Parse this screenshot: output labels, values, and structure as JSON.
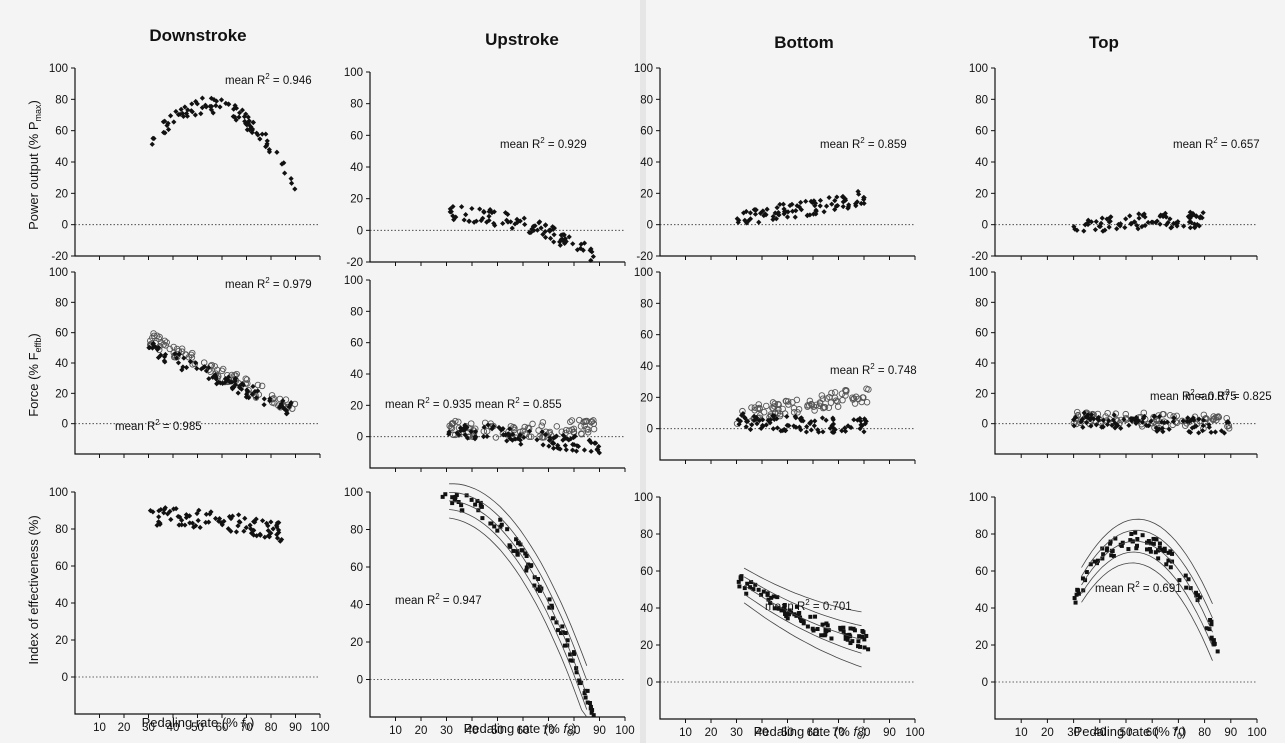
{
  "figure": {
    "y_labels": {
      "power": "Power output (% P",
      "power_sub": "max",
      "power_end": ")",
      "force": "Force (% F",
      "force_sub": "effb",
      "force_end": ")",
      "ioe": "Index of effectiveness (%)"
    },
    "x_label_main": "Pedaling rate (% ",
    "x_label_f": "f",
    "x_label_sub": "0",
    "x_label_end": ")"
  },
  "chart_data": [
    {
      "type": "scatter",
      "column": "Downstroke",
      "row": "power",
      "xlim": [
        0,
        100
      ],
      "ylim": [
        -20,
        100
      ],
      "yticks": [
        -20,
        0,
        20,
        40,
        60,
        80,
        100
      ],
      "annotations": [
        {
          "text": "mean R",
          "sup": "2",
          "val": " = 0.946"
        }
      ],
      "series": [
        {
          "marker": "filled-diamond",
          "trend": {
            "type": "quadratic",
            "x": [
              31,
              60,
              90
            ],
            "y": [
              52,
              75,
              22
            ]
          },
          "x_range": [
            31,
            90
          ]
        }
      ]
    },
    {
      "type": "scatter",
      "column": "Upstroke",
      "row": "power",
      "xlim": [
        0,
        100
      ],
      "ylim": [
        -20,
        100
      ],
      "yticks": [
        -20,
        0,
        20,
        40,
        60,
        80,
        100
      ],
      "annotations": [
        {
          "text": "mean R",
          "sup": "2",
          "val": " = 0.929"
        }
      ],
      "series": [
        {
          "marker": "filled-diamond",
          "trend": {
            "type": "quadratic",
            "x": [
              30,
              60,
              88
            ],
            "y": [
              10,
              4,
              -16
            ]
          },
          "x_range": [
            30,
            88
          ]
        }
      ]
    },
    {
      "type": "scatter",
      "column": "Bottom",
      "row": "power",
      "xlim": [
        0,
        100
      ],
      "ylim": [
        -20,
        100
      ],
      "yticks": [
        -20,
        0,
        20,
        40,
        60,
        80,
        100
      ],
      "annotations": [
        {
          "text": "mean R",
          "sup": "2",
          "val": " = 0.859"
        }
      ],
      "series": [
        {
          "marker": "filled-diamond",
          "trend": {
            "type": "quadratic",
            "x": [
              30,
              55,
              82
            ],
            "y": [
              5,
              10,
              18
            ]
          },
          "x_range": [
            30,
            82
          ]
        }
      ]
    },
    {
      "type": "scatter",
      "column": "Top",
      "row": "power",
      "xlim": [
        0,
        100
      ],
      "ylim": [
        -20,
        100
      ],
      "yticks": [
        -20,
        0,
        20,
        40,
        60,
        80,
        100
      ],
      "annotations": [
        {
          "text": "mean R",
          "sup": "2",
          "val": " = 0.657"
        }
      ],
      "series": [
        {
          "marker": "filled-diamond",
          "trend": {
            "type": "quadratic",
            "x": [
              30,
              55,
              80
            ],
            "y": [
              -1,
              2,
              3
            ]
          },
          "x_range": [
            30,
            80
          ]
        }
      ]
    },
    {
      "type": "scatter",
      "column": "Downstroke",
      "row": "force",
      "xlim": [
        0,
        100
      ],
      "ylim": [
        -20,
        100
      ],
      "yticks": [
        0,
        20,
        40,
        60,
        80,
        100
      ],
      "annotations": [
        {
          "text": "mean R",
          "sup": "2",
          "val": " = 0.979"
        },
        {
          "text": "mean R",
          "sup": "2",
          "val": " = 0.985"
        }
      ],
      "series": [
        {
          "marker": "open-circle",
          "trend": {
            "type": "quadratic",
            "x": [
              30,
              60,
              90
            ],
            "y": [
              57,
              33,
              10
            ]
          },
          "x_range": [
            30,
            90
          ]
        },
        {
          "marker": "filled-diamond",
          "trend": {
            "type": "quadratic",
            "x": [
              30,
              60,
              90
            ],
            "y": [
              50,
              29,
              8
            ]
          },
          "x_range": [
            30,
            90
          ]
        }
      ]
    },
    {
      "type": "scatter",
      "column": "Upstroke",
      "row": "force",
      "xlim": [
        0,
        100
      ],
      "ylim": [
        -20,
        100
      ],
      "yticks": [
        0,
        20,
        40,
        60,
        80,
        100
      ],
      "annotations": [
        {
          "text": "mean R",
          "sup": "2",
          "val": " = 0.935"
        },
        {
          "text": "mean R",
          "sup": "2",
          "val": " = 0.855"
        }
      ],
      "series": [
        {
          "marker": "open-circle",
          "trend": {
            "type": "quadratic",
            "x": [
              30,
              60,
              90
            ],
            "y": [
              6,
              4,
              8
            ]
          },
          "x_range": [
            30,
            90
          ]
        },
        {
          "marker": "filled-diamond",
          "trend": {
            "type": "quadratic",
            "x": [
              30,
              60,
              90
            ],
            "y": [
              5,
              0,
              -7
            ]
          },
          "x_range": [
            30,
            90
          ]
        }
      ]
    },
    {
      "type": "scatter",
      "column": "Bottom",
      "row": "force",
      "xlim": [
        0,
        100
      ],
      "ylim": [
        -20,
        100
      ],
      "yticks": [
        0,
        20,
        40,
        60,
        80,
        100
      ],
      "annotations": [
        {
          "text": "mean R",
          "sup": "2",
          "val": " = 0.748"
        }
      ],
      "series": [
        {
          "marker": "open-circle",
          "trend": {
            "type": "quadratic",
            "x": [
              30,
              55,
              82
            ],
            "y": [
              8,
              15,
              22
            ]
          },
          "x_range": [
            30,
            82
          ]
        },
        {
          "marker": "filled-diamond",
          "trend": {
            "type": "quadratic",
            "x": [
              30,
              55,
              82
            ],
            "y": [
              5,
              3,
              2
            ]
          },
          "x_range": [
            30,
            82
          ]
        }
      ]
    },
    {
      "type": "scatter",
      "column": "Top",
      "row": "force",
      "xlim": [
        0,
        100
      ],
      "ylim": [
        -20,
        100
      ],
      "yticks": [
        0,
        20,
        40,
        60,
        80,
        100
      ],
      "annotations": [
        {
          "text": "mean R",
          "sup": "2",
          "val": " = 0.875"
        },
        {
          "text": "mean R",
          "sup": "2",
          "val": " = 0.825"
        }
      ],
      "series": [
        {
          "marker": "open-circle",
          "trend": {
            "type": "quadratic",
            "x": [
              30,
              60,
              90
            ],
            "y": [
              4,
              2,
              1
            ]
          },
          "x_range": [
            30,
            90
          ]
        },
        {
          "marker": "filled-diamond",
          "trend": {
            "type": "quadratic",
            "x": [
              30,
              60,
              90
            ],
            "y": [
              3,
              0,
              -2
            ]
          },
          "x_range": [
            30,
            90
          ]
        }
      ]
    },
    {
      "type": "scatter",
      "column": "Downstroke",
      "row": "ioe",
      "xlim": [
        0,
        100
      ],
      "ylim": [
        -20,
        100
      ],
      "yticks": [
        0,
        20,
        40,
        60,
        80,
        100
      ],
      "xticks": [
        10,
        20,
        30,
        40,
        50,
        60,
        70,
        80,
        90,
        100
      ],
      "annotations": [],
      "series": [
        {
          "marker": "filled-diamond",
          "trend": {
            "type": "quadratic",
            "x": [
              30,
              60,
              85
            ],
            "y": [
              87,
              84,
              78
            ]
          },
          "x_range": [
            30,
            85
          ]
        }
      ]
    },
    {
      "type": "scatter",
      "column": "Upstroke",
      "row": "ioe",
      "xlim": [
        0,
        100
      ],
      "ylim": [
        -20,
        100
      ],
      "yticks": [
        0,
        20,
        40,
        60,
        80,
        100
      ],
      "xticks": [
        10,
        20,
        30,
        40,
        50,
        60,
        70,
        80,
        90,
        100
      ],
      "annotations": [
        {
          "text": "mean R",
          "sup": "2",
          "val": " = 0.947"
        }
      ],
      "series": [
        {
          "marker": "filled-square",
          "trend": {
            "type": "quadratic",
            "x": [
              28,
              60,
              88
            ],
            "y": [
              95,
              65,
              -20
            ]
          },
          "x_range": [
            28,
            88
          ]
        }
      ]
    },
    {
      "type": "scatter",
      "column": "Bottom",
      "row": "ioe",
      "xlim": [
        0,
        100
      ],
      "ylim": [
        -20,
        100
      ],
      "yticks": [
        0,
        20,
        40,
        60,
        80,
        100
      ],
      "xticks": [
        10,
        20,
        30,
        40,
        50,
        60,
        70,
        80,
        90,
        100
      ],
      "annotations": [
        {
          "text": "mean R",
          "sup": "2",
          "val": " = 0.701"
        }
      ],
      "series": [
        {
          "marker": "filled-square",
          "trend": {
            "type": "quadratic",
            "x": [
              30,
              55,
              82
            ],
            "y": [
              55,
              35,
              22
            ]
          },
          "x_range": [
            30,
            82
          ]
        }
      ]
    },
    {
      "type": "scatter",
      "column": "Top",
      "row": "ioe",
      "xlim": [
        0,
        100
      ],
      "ylim": [
        -20,
        100
      ],
      "yticks": [
        0,
        20,
        40,
        60,
        80,
        100
      ],
      "xticks": [
        10,
        20,
        30,
        40,
        50,
        60,
        70,
        80,
        90,
        100
      ],
      "annotations": [
        {
          "text": "mean R",
          "sup": "2",
          "val": " = 0.691"
        }
      ],
      "series": [
        {
          "marker": "filled-square",
          "trend": {
            "type": "quadratic",
            "x": [
              30,
              58,
              85
            ],
            "y": [
              45,
              75,
              20
            ]
          },
          "x_range": [
            30,
            85
          ]
        }
      ]
    }
  ],
  "columns": [
    "Downstroke",
    "Upstroke",
    "Bottom",
    "Top"
  ]
}
